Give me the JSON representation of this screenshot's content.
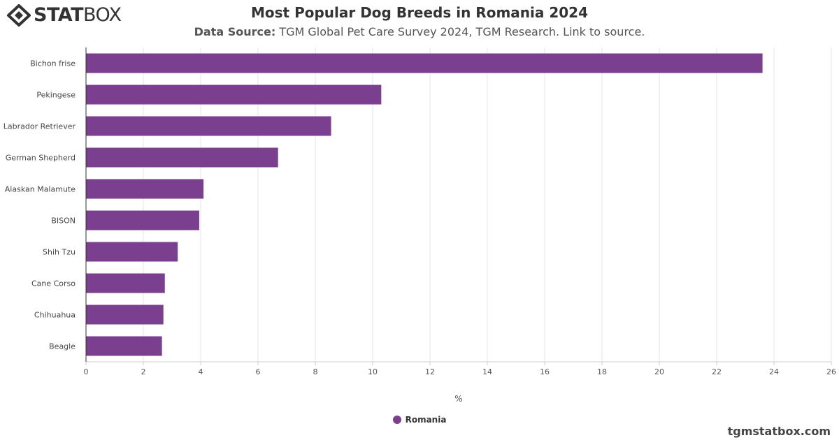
{
  "brand": {
    "logo_bold": "STAT",
    "logo_light": "BOX",
    "footer": "tgmstatbox.com"
  },
  "header": {
    "title": "Most Popular Dog Breeds in Romania 2024",
    "source_label": "Data Source:",
    "source_text": "TGM Global Pet Care Survey 2024, TGM Research. Link to source."
  },
  "colors": {
    "bar": "#7b3f8f",
    "grid": "#e6e6e6",
    "axis": "#333333"
  },
  "chart_data": {
    "type": "bar",
    "orientation": "horizontal",
    "categories": [
      "Bichon frise",
      "Pekingese",
      "Labrador Retriever",
      "German Shepherd",
      "Alaskan Malamute",
      "BISON",
      "Shih Tzu",
      "Cane Corso",
      "Chihuahua",
      "Beagle"
    ],
    "series": [
      {
        "name": "Romania",
        "values": [
          23.6,
          10.3,
          8.55,
          6.7,
          4.1,
          3.95,
          3.2,
          2.75,
          2.7,
          2.65
        ]
      }
    ],
    "xlabel": "%",
    "xlim": [
      0,
      26
    ],
    "xticks": [
      0,
      2,
      4,
      6,
      8,
      10,
      12,
      14,
      16,
      18,
      20,
      22,
      24,
      26
    ],
    "grid": true,
    "legend_position": "bottom-center"
  }
}
